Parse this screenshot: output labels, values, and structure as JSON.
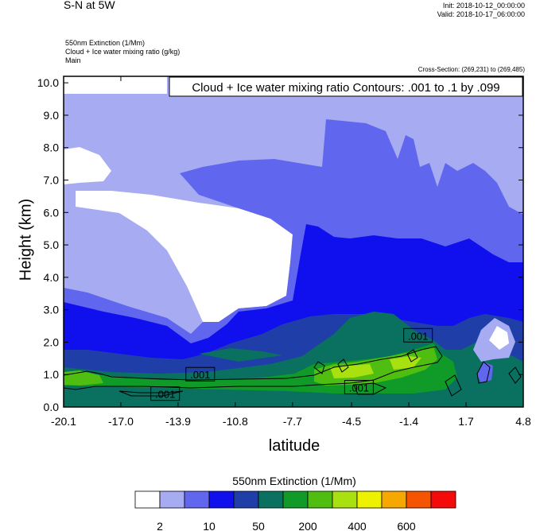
{
  "header": {
    "title": "S-N at 5W",
    "init": "Init: 2018-10-12_00:00:00",
    "valid": "Valid: 2018-10-17_06:00:00",
    "field1": "550nm Extinction   (1/Mm)",
    "field2": "Cloud + Ice water mixing ratio   (g/kg)",
    "field3": "Main",
    "cross_section": "Cross-Section: (269,231) to (269,485)"
  },
  "chart_data": {
    "type": "heatmap",
    "title": "Cloud + Ice water mixing ratio Contours: .001 to .1 by .099",
    "xlabel": "latitude",
    "ylabel": "Height (km)",
    "xlim": [
      -20.1,
      4.8
    ],
    "ylim": [
      0.0,
      10.2
    ],
    "x_ticks": [
      "-20.1",
      "-17.0",
      "-13.9",
      "-10.8",
      "-7.7",
      "-4.5",
      "-1.4",
      "1.7",
      "4.8"
    ],
    "y_ticks": [
      "0.0",
      "1.0",
      "2.0",
      "3.0",
      "4.0",
      "5.0",
      "6.0",
      "7.0",
      "8.0",
      "9.0",
      "10.0"
    ],
    "contour_labels": [
      {
        "text": ".001",
        "x": -12.7,
        "y": 1.0
      },
      {
        "text": ".001",
        "x": -14.6,
        "y": 0.4
      },
      {
        "text": ".001",
        "x": -4.1,
        "y": 0.6
      },
      {
        "text": ".001",
        "x": -0.9,
        "y": 2.2
      }
    ],
    "legend": {
      "title": "550nm Extinction  (1/Mm)",
      "tick_labels": [
        "2",
        "10",
        "50",
        "200",
        "400",
        "600"
      ],
      "colors": [
        "#ffffff",
        "#a6abf2",
        "#6066ee",
        "#1010ee",
        "#1f3ea8",
        "#0a7060",
        "#109a28",
        "#4fbe10",
        "#a8e010",
        "#eef200",
        "#f7a800",
        "#f55400",
        "#f50a0a"
      ]
    }
  }
}
